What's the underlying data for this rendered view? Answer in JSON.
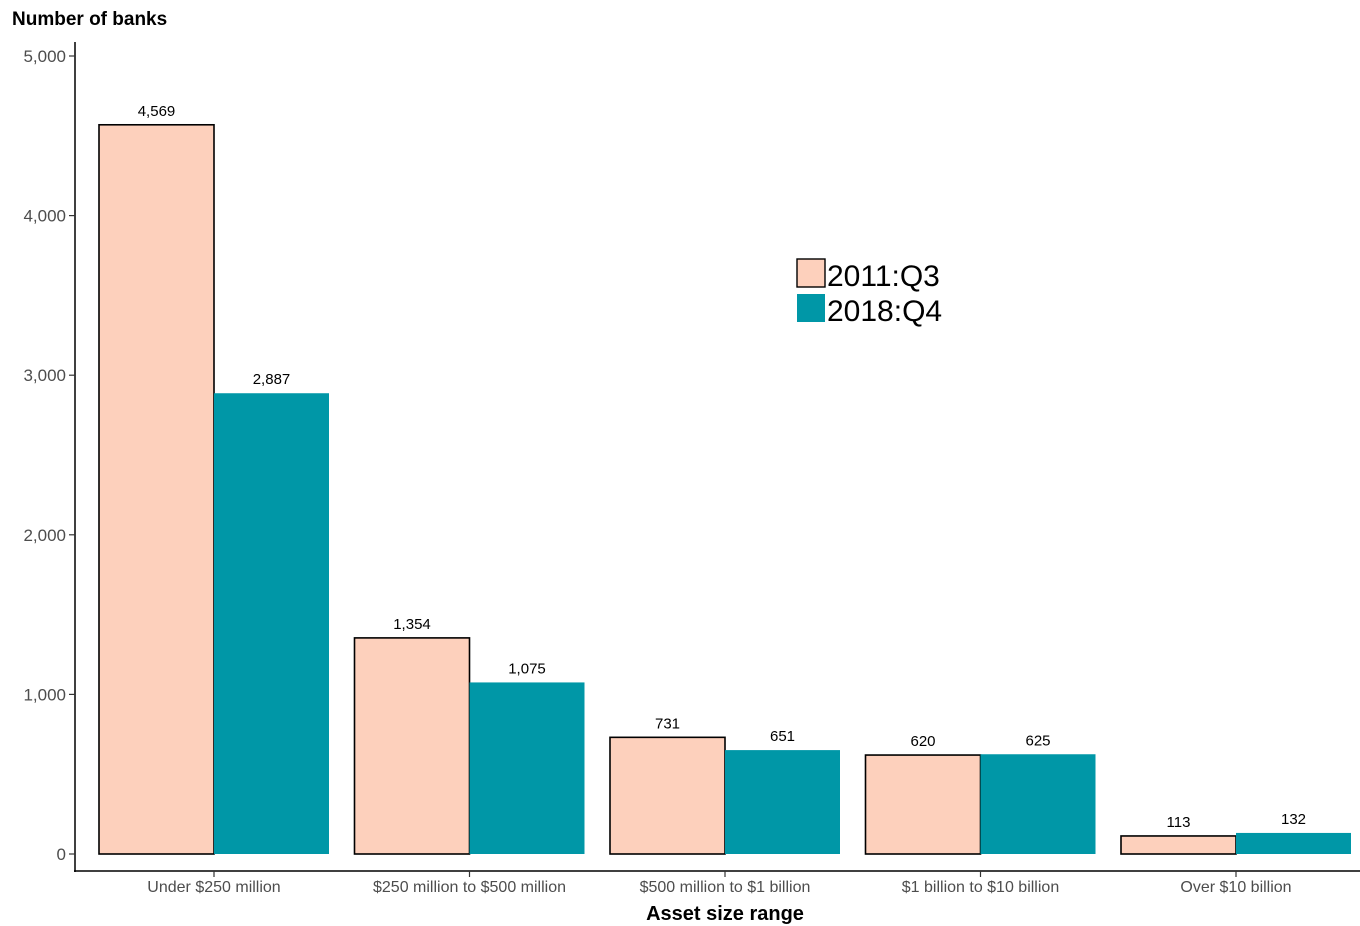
{
  "chart_data": {
    "type": "bar",
    "title": "",
    "ylabel": "Number of banks",
    "xlabel": "Asset size range",
    "categories": [
      "Under $250 million",
      "$250 million to $500 million",
      "$500 million to $1 billion",
      "$1 billion to $10 billion",
      "Over $10 billion"
    ],
    "series": [
      {
        "name": "2011:Q3",
        "color": "#fdd0bc",
        "outline": "#000000",
        "values": [
          4569,
          1354,
          731,
          620,
          113
        ],
        "labels": [
          "4,569",
          "1,354",
          "731",
          "620",
          "113"
        ]
      },
      {
        "name": "2018:Q4",
        "color": "#0097a7",
        "outline": "none",
        "values": [
          2887,
          1075,
          651,
          625,
          132
        ],
        "labels": [
          "2,887",
          "1,075",
          "651",
          "625",
          "132"
        ]
      }
    ],
    "ylim": [
      0,
      5000
    ],
    "yticks": [
      0,
      1000,
      2000,
      3000,
      4000,
      5000
    ],
    "ytick_labels": [
      "0",
      "1,000",
      "2,000",
      "3,000",
      "4,000",
      "5,000"
    ],
    "grid": false,
    "legend_position": "upper-center-right"
  }
}
